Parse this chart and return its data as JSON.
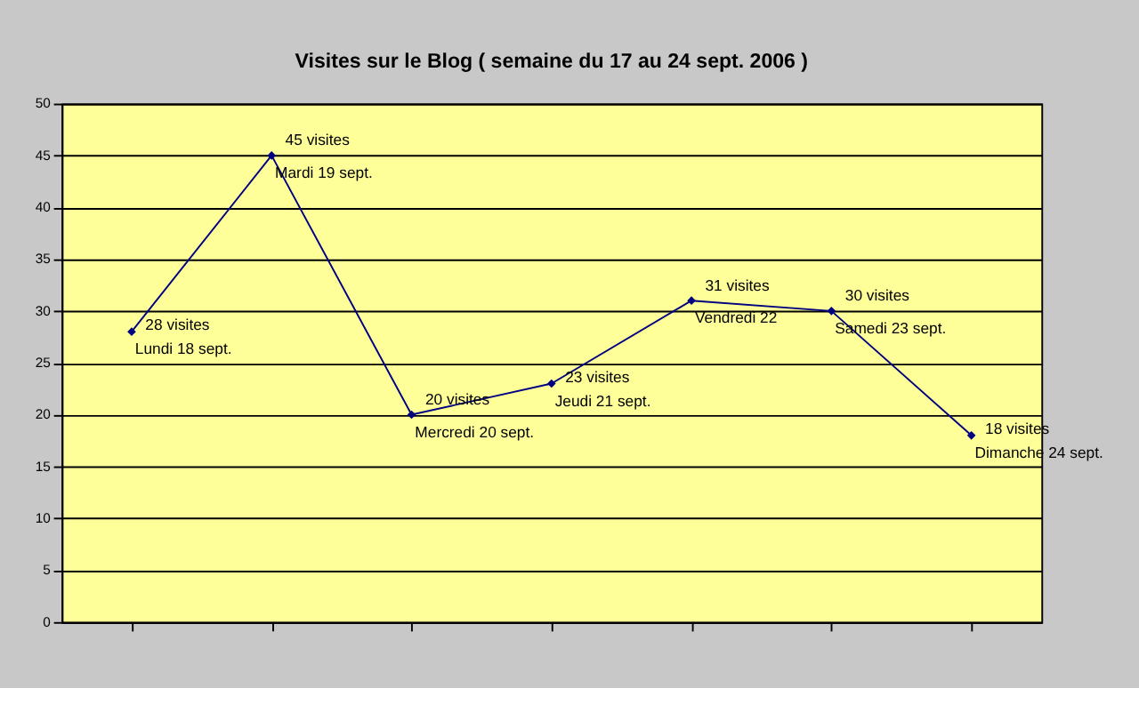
{
  "chart_data": {
    "type": "line",
    "title": "Visites sur le Blog ( semaine du 17 au 24 sept. 2006 )",
    "categories": [
      "Lundi 18 sept.",
      "Mardi 19 sept.",
      "Mercredi 20 sept.",
      "Jeudi 21 sept.",
      "Vendredi 22",
      "Samedi 23 sept.",
      "Dimanche 24 sept."
    ],
    "series": [
      {
        "color": "#000080",
        "values": [
          28,
          45,
          20,
          23,
          31,
          30,
          18
        ],
        "value_labels": [
          "28 visites",
          "45 visites",
          "20 visites",
          "23 visites",
          "31 visites",
          "30 visites",
          "18 visites"
        ]
      }
    ],
    "ylim": [
      0,
      50
    ],
    "yticks": [
      0,
      5,
      10,
      15,
      20,
      25,
      30,
      35,
      40,
      45,
      50
    ],
    "grid": "y",
    "marker": "diamond",
    "line_style": "solid",
    "tick_labels": "y"
  }
}
